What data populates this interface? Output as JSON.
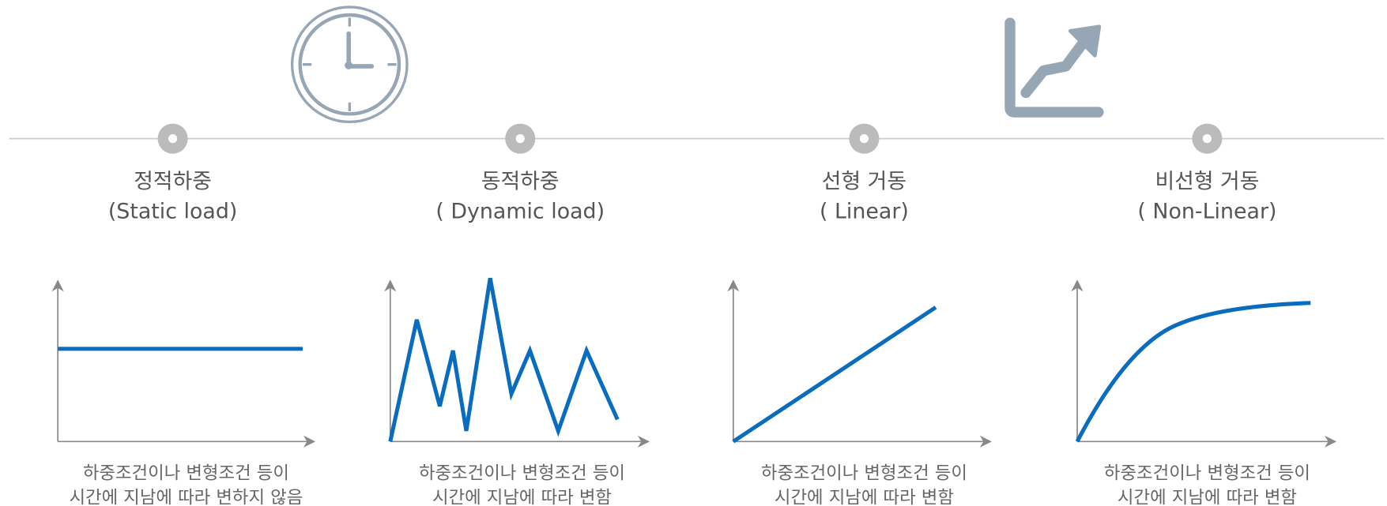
{
  "items": [
    {
      "title": "정적하중",
      "subtitle": "(Static load)",
      "description": [
        "하중조건이나 변형조건 등이",
        "시간에 지남에 따라 변하지 않음"
      ]
    },
    {
      "title": "동적하중",
      "subtitle": "( Dynamic load)",
      "description": [
        "하중조건이나 변형조건 등이",
        "시간에 지남에 따라 변함"
      ]
    },
    {
      "title": "선형 거동",
      "subtitle": "( Linear)",
      "description": [
        "하중조건이나 변형조건 등이",
        "시간에 지남에 따라 변함"
      ]
    },
    {
      "title": "비선형 거동",
      "subtitle": "( Non-Linear)",
      "description": [
        "하중조건이나 변형조건 등이",
        "시간에 지남에 따라 변함"
      ]
    }
  ]
}
